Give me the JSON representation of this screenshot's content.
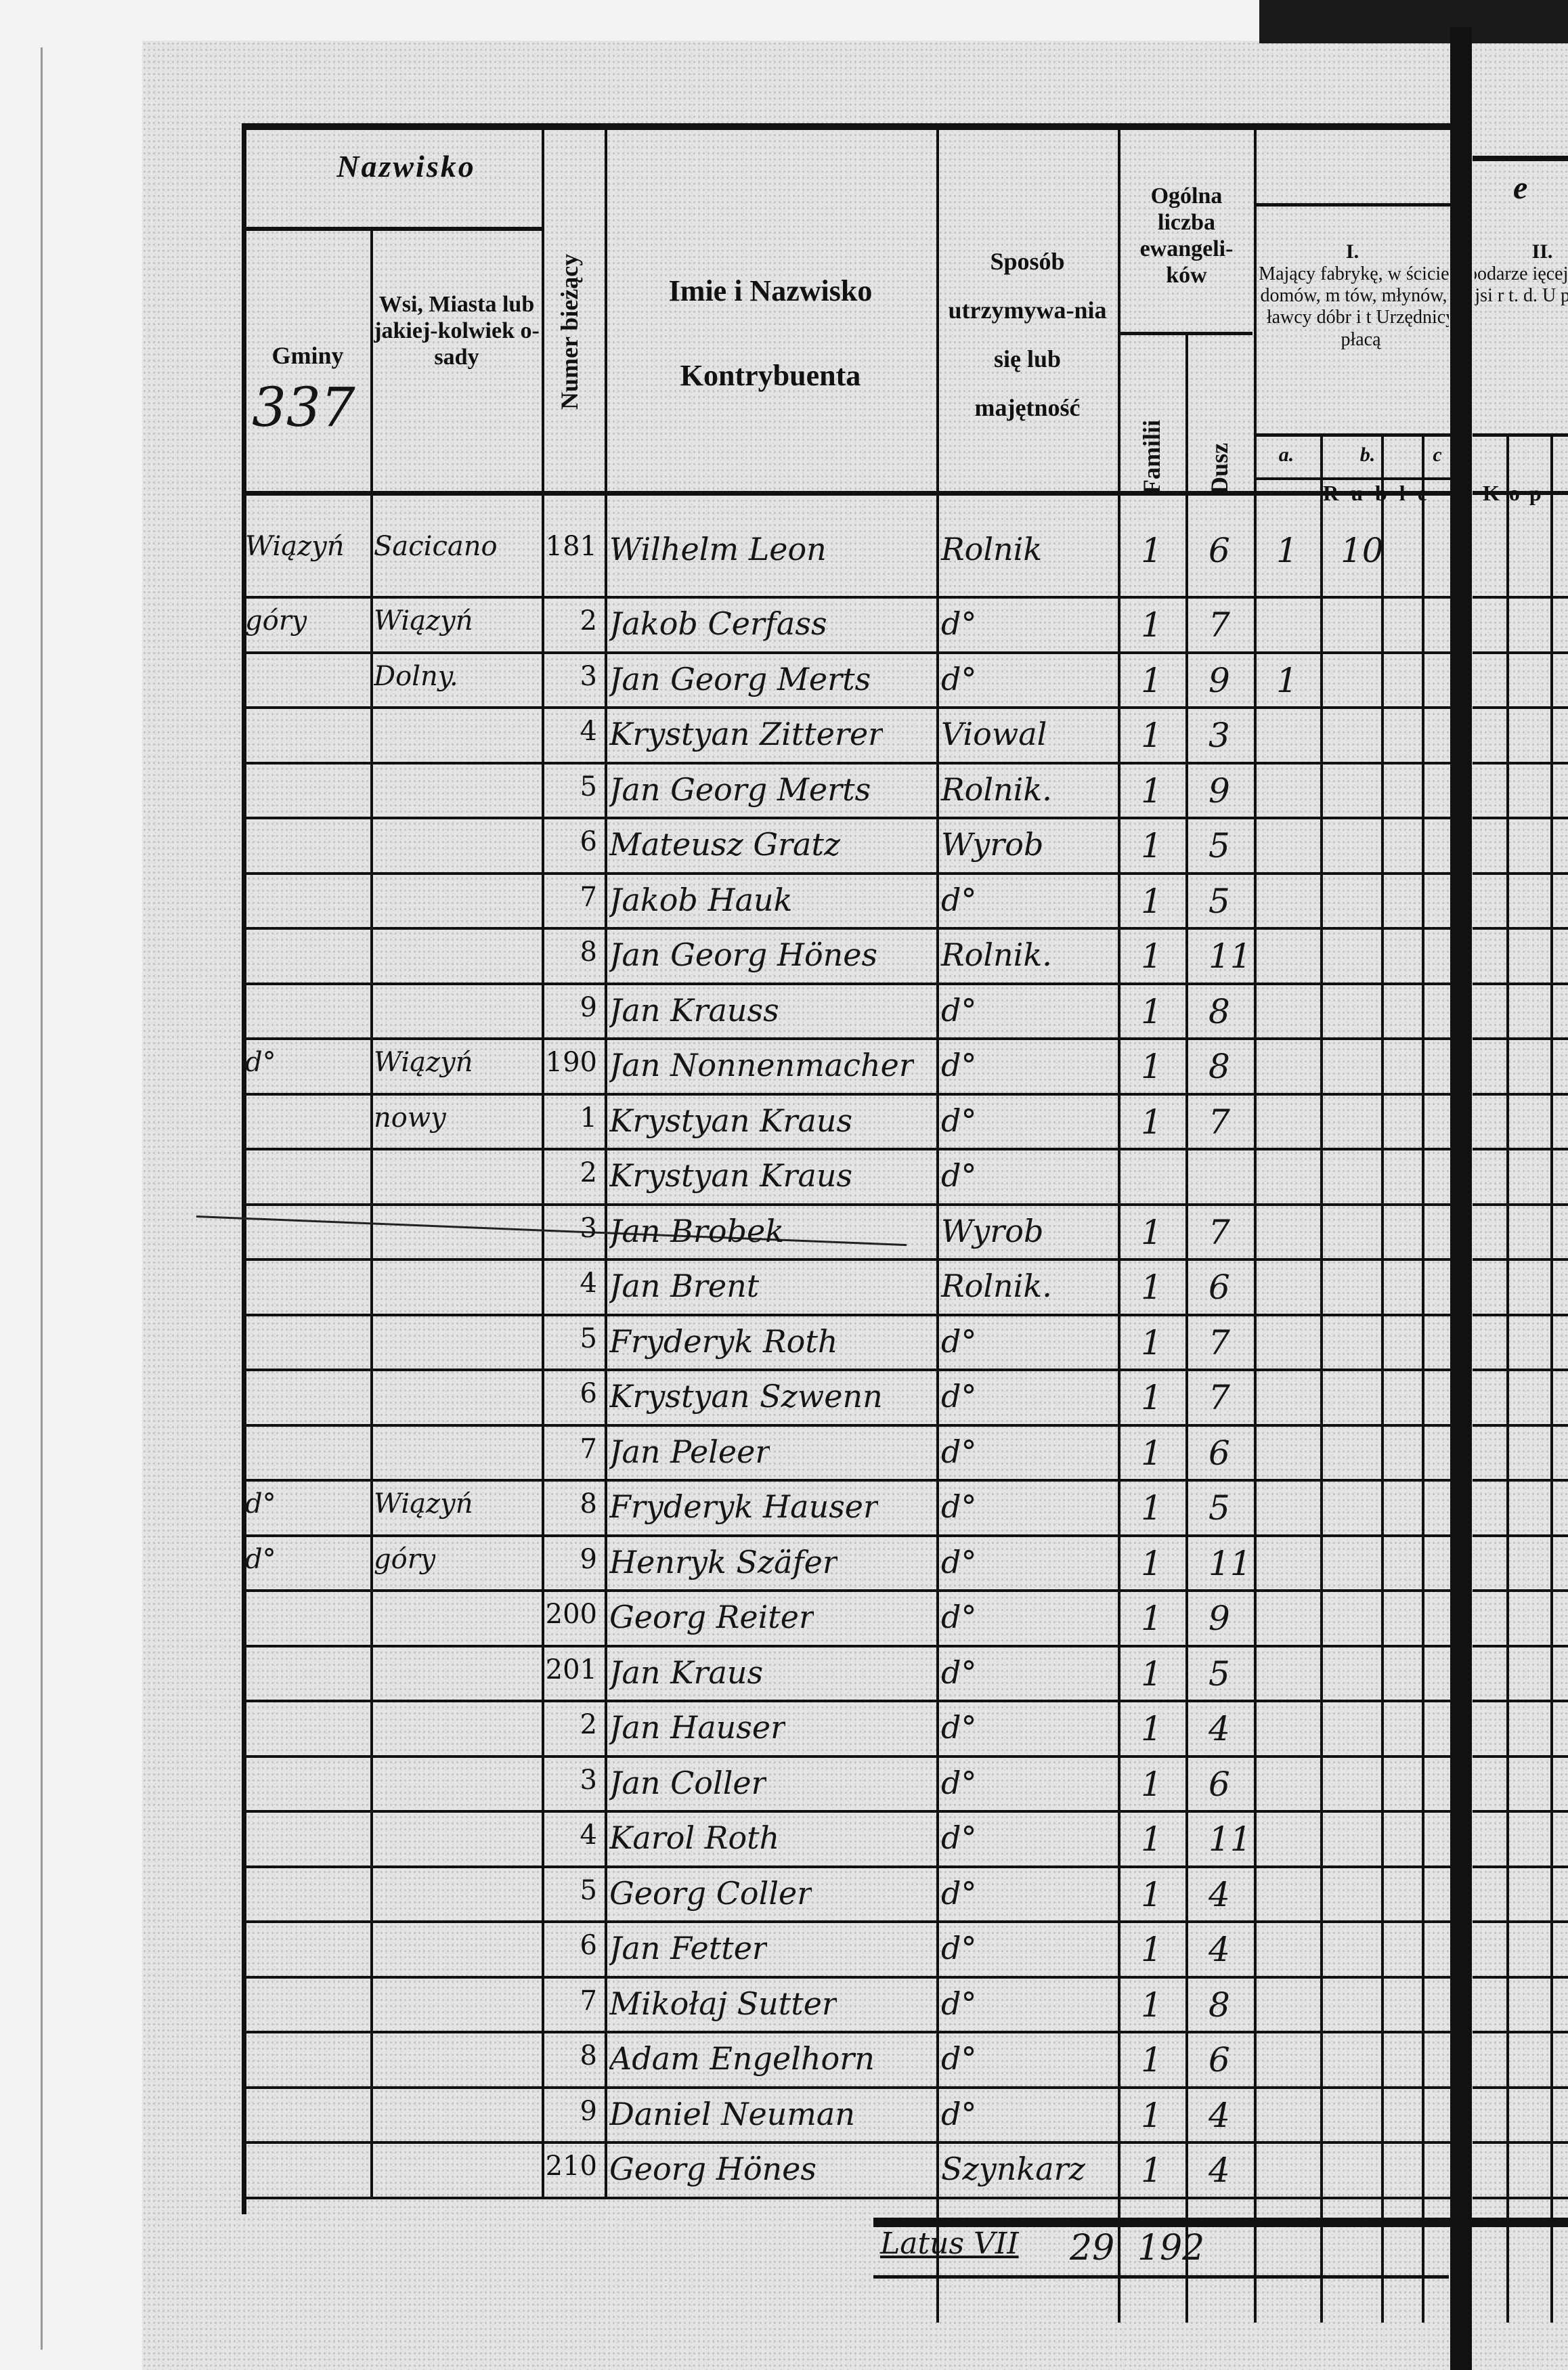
{
  "header": {
    "nazwisko": "Nazwisko",
    "gminy": "Gminy",
    "gminy_note": "337",
    "wsi": "Wsi, Miasta lub jakiej-kolwiek o-sady",
    "numer": "Numer bieżący",
    "imie": "Imie i Nazwisko",
    "kontrybuenta": "Kontrybuenta",
    "sposob": "Sposób utrzymywa-nia się lub majętność",
    "ogolna": "Ogólna liczba ewangeli-ków",
    "familii": "Familii",
    "dusz": "Dusz",
    "col1_num": "I.",
    "col1_text": "Mający fabrykę, w ściciele domów, m tów, młynów, d ławcy dóbr i t Urzędnicy płacą",
    "col2_num": "II.",
    "col2_text": "ospodarze ięcej mi niejsi r t. d. U płac",
    "top_right": "l e",
    "sub_a": "a.",
    "sub_b": "b.",
    "sub_c": "c",
    "ruble": "Ruble",
    "kop": "Kop"
  },
  "rows": [
    {
      "gmina": "Wiązyń",
      "wies": "Sacicano",
      "nr": "181",
      "name": "Wilhelm Leon",
      "sposob": "Rolnik",
      "familii": "1",
      "dusz": "6",
      "a": "1",
      "b": "10"
    },
    {
      "gmina": "góry",
      "wies": "Wiązyń",
      "nr": "2",
      "name": "Jakob Cerfass",
      "sposob": "d°",
      "familii": "1",
      "dusz": "7"
    },
    {
      "gmina": "",
      "wies": "Dolny.",
      "nr": "3",
      "name": "Jan Georg Merts",
      "sposob": "d°",
      "familii": "1",
      "dusz": "9",
      "a": "1"
    },
    {
      "gmina": "",
      "wies": "",
      "nr": "4",
      "name": "Krystyan Zitterer",
      "sposob": "Viowal",
      "familii": "1",
      "dusz": "3"
    },
    {
      "gmina": "",
      "wies": "",
      "nr": "5",
      "name": "Jan Georg Merts",
      "sposob": "Rolnik.",
      "familii": "1",
      "dusz": "9"
    },
    {
      "gmina": "",
      "wies": "",
      "nr": "6",
      "name": "Mateusz Gratz",
      "sposob": "Wyrob",
      "familii": "1",
      "dusz": "5"
    },
    {
      "gmina": "",
      "wies": "",
      "nr": "7",
      "name": "Jakob Hauk",
      "sposob": "d°",
      "familii": "1",
      "dusz": "5"
    },
    {
      "gmina": "",
      "wies": "",
      "nr": "8",
      "name": "Jan Georg Hönes",
      "sposob": "Rolnik.",
      "familii": "1",
      "dusz": "11"
    },
    {
      "gmina": "",
      "wies": "",
      "nr": "9",
      "name": "Jan Krauss",
      "sposob": "d°",
      "familii": "1",
      "dusz": "8"
    },
    {
      "gmina": "d°",
      "wies": "Wiązyń",
      "nr": "190",
      "name": "Jan Nonnenmacher",
      "sposob": "d°",
      "familii": "1",
      "dusz": "8"
    },
    {
      "gmina": "",
      "wies": "nowy",
      "nr": "1",
      "name": "Krystyan Kraus",
      "sposob": "d°",
      "familii": "1",
      "dusz": "7"
    },
    {
      "gmina": "",
      "wies": "",
      "nr": "2",
      "name": "Krystyan Kraus",
      "sposob": "d°",
      "familii": "",
      "dusz": ""
    },
    {
      "gmina": "",
      "wies": "",
      "nr": "3",
      "name": "Jan Brobek",
      "sposob": "Wyrob",
      "familii": "1",
      "dusz": "7"
    },
    {
      "gmina": "",
      "wies": "",
      "nr": "4",
      "name": "Jan Brent",
      "sposob": "Rolnik.",
      "familii": "1",
      "dusz": "6"
    },
    {
      "gmina": "",
      "wies": "",
      "nr": "5",
      "name": "Fryderyk Roth",
      "sposob": "d°",
      "familii": "1",
      "dusz": "7"
    },
    {
      "gmina": "",
      "wies": "",
      "nr": "6",
      "name": "Krystyan Szwenn",
      "sposob": "d°",
      "familii": "1",
      "dusz": "7"
    },
    {
      "gmina": "",
      "wies": "",
      "nr": "7",
      "name": "Jan Peleer",
      "sposob": "d°",
      "familii": "1",
      "dusz": "6"
    },
    {
      "gmina": "d°",
      "wies": "Wiązyń",
      "nr": "8",
      "name": "Fryderyk Hauser",
      "sposob": "d°",
      "familii": "1",
      "dusz": "5"
    },
    {
      "gmina": "d°",
      "wies": "góry",
      "nr": "9",
      "name": "Henryk Szäfer",
      "sposob": "d°",
      "familii": "1",
      "dusz": "11"
    },
    {
      "gmina": "",
      "wies": "",
      "nr": "200",
      "name": "Georg Reiter",
      "sposob": "d°",
      "familii": "1",
      "dusz": "9"
    },
    {
      "gmina": "",
      "wies": "",
      "nr": "201",
      "name": "Jan Kraus",
      "sposob": "d°",
      "familii": "1",
      "dusz": "5"
    },
    {
      "gmina": "",
      "wies": "",
      "nr": "2",
      "name": "Jan Hauser",
      "sposob": "d°",
      "familii": "1",
      "dusz": "4"
    },
    {
      "gmina": "",
      "wies": "",
      "nr": "3",
      "name": "Jan Coller",
      "sposob": "d°",
      "familii": "1",
      "dusz": "6"
    },
    {
      "gmina": "",
      "wies": "",
      "nr": "4",
      "name": "Karol Roth",
      "sposob": "d°",
      "familii": "1",
      "dusz": "11"
    },
    {
      "gmina": "",
      "wies": "",
      "nr": "5",
      "name": "Georg Coller",
      "sposob": "d°",
      "familii": "1",
      "dusz": "4"
    },
    {
      "gmina": "",
      "wies": "",
      "nr": "6",
      "name": "Jan Fetter",
      "sposob": "d°",
      "familii": "1",
      "dusz": "4"
    },
    {
      "gmina": "",
      "wies": "",
      "nr": "7",
      "name": "Mikołaj Sutter",
      "sposob": "d°",
      "familii": "1",
      "dusz": "8"
    },
    {
      "gmina": "",
      "wies": "",
      "nr": "8",
      "name": "Adam Engelhorn",
      "sposob": "d°",
      "familii": "1",
      "dusz": "6"
    },
    {
      "gmina": "",
      "wies": "",
      "nr": "9",
      "name": "Daniel Neuman",
      "sposob": "d°",
      "familii": "1",
      "dusz": "4"
    },
    {
      "gmina": "",
      "wies": "",
      "nr": "210",
      "name": "Georg Hönes",
      "sposob": "Szynkarz",
      "familii": "1",
      "dusz": "4"
    }
  ],
  "total": {
    "label": "Latus VII",
    "familii": "29",
    "dusz": "192"
  }
}
